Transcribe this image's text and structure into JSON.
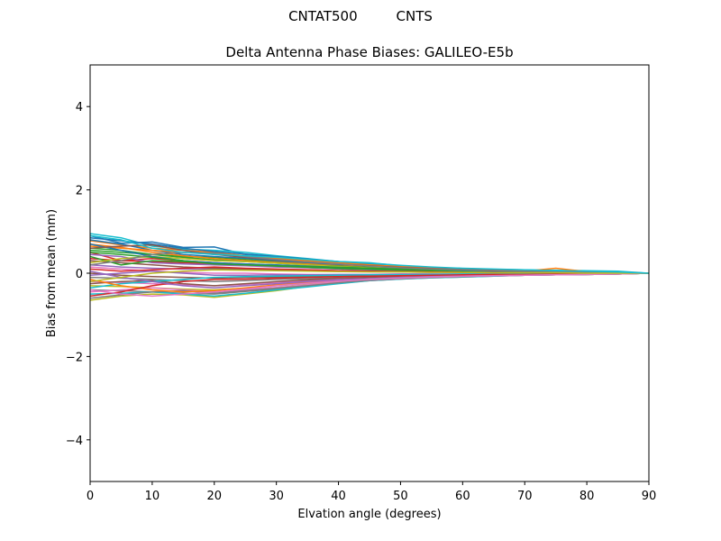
{
  "figure": {
    "suptitle": "CNTAT500         CNTS"
  },
  "chart_data": {
    "type": "line",
    "title": "Delta Antenna Phase Biases: GALILEO-E5b",
    "xlabel": "Elvation angle (degrees)",
    "ylabel": "Bias from mean (mm)",
    "xlim": [
      0,
      90
    ],
    "ylim": [
      -5,
      5
    ],
    "xticks": [
      0,
      10,
      20,
      30,
      40,
      50,
      60,
      70,
      80,
      90
    ],
    "xtick_labels": [
      "0",
      "10",
      "20",
      "30",
      "40",
      "50",
      "60",
      "70",
      "80",
      "90"
    ],
    "yticks": [
      -4,
      -2,
      0,
      2,
      4
    ],
    "ytick_labels": [
      "−4",
      "−2",
      "0",
      "2",
      "4"
    ],
    "grid": false,
    "legend": "none",
    "x": [
      0,
      5,
      10,
      15,
      20,
      25,
      30,
      35,
      40,
      45,
      50,
      55,
      60,
      65,
      70,
      75,
      80,
      85,
      90
    ],
    "colors": [
      "#1f77b4",
      "#ff7f0e",
      "#2ca02c",
      "#d62728",
      "#9467bd",
      "#8c564b",
      "#e377c2",
      "#7f7f7f",
      "#bcbd22",
      "#17becf"
    ],
    "series": [
      {
        "values": [
          0.9,
          0.72,
          0.75,
          0.62,
          0.63,
          0.45,
          0.4,
          0.32,
          0.27,
          0.22,
          0.17,
          0.12,
          0.1,
          0.08,
          0.06,
          0.05,
          0.04,
          0.03,
          0.0
        ]
      },
      {
        "values": [
          0.78,
          0.68,
          0.6,
          0.55,
          0.5,
          0.42,
          0.36,
          0.3,
          0.25,
          0.2,
          0.15,
          0.12,
          0.09,
          0.07,
          0.05,
          0.04,
          0.03,
          0.02,
          0.0
        ]
      },
      {
        "values": [
          0.55,
          0.5,
          0.45,
          0.4,
          0.38,
          0.33,
          0.28,
          0.24,
          0.2,
          0.16,
          0.13,
          0.1,
          0.08,
          0.06,
          0.05,
          0.04,
          0.03,
          0.02,
          0.0
        ]
      },
      {
        "values": [
          0.35,
          0.3,
          0.28,
          0.25,
          0.22,
          0.2,
          0.18,
          0.15,
          0.12,
          0.1,
          0.08,
          0.06,
          0.05,
          0.04,
          0.03,
          0.02,
          0.02,
          0.01,
          0.0
        ]
      },
      {
        "values": [
          0.2,
          0.15,
          0.12,
          0.1,
          0.1,
          0.08,
          0.07,
          0.06,
          0.05,
          0.04,
          0.03,
          0.02,
          0.02,
          0.01,
          0.01,
          0.01,
          0.0,
          0.0,
          0.0
        ]
      },
      {
        "values": [
          0.0,
          -0.05,
          -0.08,
          -0.1,
          -0.12,
          -0.1,
          -0.09,
          -0.08,
          -0.07,
          -0.06,
          -0.05,
          -0.04,
          -0.03,
          -0.03,
          -0.02,
          -0.02,
          -0.01,
          -0.01,
          0.0
        ]
      },
      {
        "values": [
          -0.2,
          -0.22,
          -0.25,
          -0.28,
          -0.3,
          -0.27,
          -0.22,
          -0.18,
          -0.15,
          -0.12,
          -0.1,
          -0.08,
          -0.06,
          -0.05,
          -0.04,
          -0.03,
          -0.02,
          -0.01,
          0.0
        ]
      },
      {
        "values": [
          -0.4,
          -0.42,
          -0.45,
          -0.48,
          -0.5,
          -0.44,
          -0.38,
          -0.3,
          -0.24,
          -0.18,
          -0.14,
          -0.11,
          -0.09,
          -0.07,
          -0.05,
          -0.04,
          -0.03,
          -0.02,
          0.0
        ]
      },
      {
        "values": [
          -0.65,
          -0.55,
          -0.5,
          -0.52,
          -0.58,
          -0.5,
          -0.42,
          -0.32,
          -0.22,
          -0.16,
          -0.12,
          -0.1,
          -0.08,
          -0.06,
          -0.05,
          -0.04,
          -0.03,
          -0.02,
          0.0
        ]
      },
      {
        "values": [
          0.95,
          0.85,
          0.65,
          0.58,
          0.55,
          0.5,
          0.42,
          0.35,
          0.28,
          0.25,
          0.18,
          0.13,
          0.1,
          0.09,
          0.08,
          0.07,
          0.06,
          0.05,
          0.0
        ]
      },
      {
        "values": [
          0.8,
          0.7,
          0.55,
          0.45,
          0.4,
          0.36,
          0.3,
          0.25,
          0.2,
          0.16,
          0.12,
          0.1,
          0.08,
          0.06,
          0.05,
          0.04,
          0.03,
          0.02,
          0.0
        ]
      },
      {
        "values": [
          0.7,
          0.62,
          0.5,
          0.42,
          0.35,
          0.3,
          0.26,
          0.22,
          0.18,
          0.15,
          0.11,
          0.09,
          0.07,
          0.05,
          0.05,
          0.12,
          0.04,
          0.02,
          0.0
        ]
      },
      {
        "values": [
          0.6,
          0.55,
          0.45,
          0.38,
          0.32,
          0.28,
          0.24,
          0.2,
          0.17,
          0.14,
          0.11,
          0.08,
          0.06,
          0.05,
          0.04,
          0.03,
          0.02,
          0.01,
          0.0
        ]
      },
      {
        "values": [
          0.5,
          0.3,
          0.35,
          0.3,
          0.25,
          0.22,
          0.19,
          0.16,
          0.13,
          0.11,
          0.09,
          0.07,
          0.05,
          0.04,
          0.03,
          0.02,
          0.02,
          0.01,
          0.0
        ]
      },
      {
        "values": [
          0.45,
          0.4,
          0.25,
          0.22,
          0.2,
          0.18,
          0.15,
          0.13,
          0.1,
          0.08,
          0.07,
          0.05,
          0.04,
          0.03,
          0.02,
          0.02,
          0.01,
          0.01,
          0.0
        ]
      },
      {
        "values": [
          0.3,
          0.25,
          0.2,
          0.15,
          0.12,
          0.1,
          0.09,
          0.08,
          0.06,
          0.05,
          0.04,
          0.03,
          0.02,
          0.02,
          0.01,
          0.01,
          0.01,
          0.0,
          0.0
        ]
      },
      {
        "values": [
          0.15,
          0.1,
          0.05,
          0.02,
          0.0,
          0.0,
          -0.02,
          -0.03,
          -0.04,
          -0.04,
          -0.04,
          -0.03,
          -0.03,
          -0.02,
          -0.02,
          -0.01,
          -0.01,
          0.0,
          0.0
        ]
      },
      {
        "values": [
          -0.1,
          -0.12,
          -0.15,
          -0.18,
          -0.2,
          -0.18,
          -0.15,
          -0.13,
          -0.11,
          -0.09,
          -0.07,
          -0.06,
          -0.05,
          -0.04,
          -0.03,
          -0.02,
          -0.02,
          -0.01,
          0.0
        ]
      },
      {
        "values": [
          -0.3,
          -0.32,
          -0.35,
          -0.38,
          -0.4,
          -0.36,
          -0.3,
          -0.25,
          -0.2,
          -0.16,
          -0.12,
          -0.1,
          -0.08,
          -0.06,
          -0.05,
          -0.04,
          -0.03,
          -0.02,
          0.0
        ]
      },
      {
        "values": [
          -0.5,
          -0.48,
          -0.45,
          -0.5,
          -0.55,
          -0.48,
          -0.4,
          -0.33,
          -0.25,
          -0.18,
          -0.14,
          -0.11,
          -0.09,
          -0.07,
          -0.05,
          -0.04,
          -0.03,
          -0.02,
          0.0
        ]
      },
      {
        "values": [
          0.85,
          0.78,
          0.7,
          0.6,
          0.52,
          0.46,
          0.4,
          0.34,
          0.28,
          0.22,
          0.18,
          0.14,
          0.11,
          0.09,
          0.07,
          0.05,
          0.04,
          0.02,
          0.0
        ]
      },
      {
        "values": [
          0.65,
          0.6,
          0.55,
          0.5,
          0.46,
          0.4,
          0.35,
          0.3,
          0.25,
          0.2,
          0.16,
          0.13,
          0.1,
          0.08,
          0.06,
          0.05,
          0.04,
          0.02,
          0.0
        ]
      },
      {
        "values": [
          0.4,
          0.2,
          0.3,
          0.28,
          0.25,
          0.2,
          0.17,
          0.14,
          0.11,
          0.09,
          0.07,
          0.06,
          0.05,
          0.04,
          0.03,
          0.02,
          0.02,
          0.01,
          0.0
        ]
      },
      {
        "values": [
          0.1,
          0.05,
          0.08,
          0.12,
          0.15,
          0.12,
          0.1,
          0.08,
          0.06,
          0.05,
          0.04,
          0.03,
          0.02,
          0.02,
          0.01,
          0.01,
          0.0,
          0.0,
          0.0
        ]
      },
      {
        "values": [
          -0.05,
          0.0,
          0.05,
          0.0,
          -0.05,
          -0.05,
          -0.04,
          -0.04,
          -0.03,
          -0.03,
          -0.02,
          -0.02,
          -0.02,
          -0.01,
          -0.01,
          -0.01,
          0.0,
          0.0,
          0.0
        ]
      },
      {
        "values": [
          -0.25,
          -0.2,
          -0.18,
          -0.25,
          -0.3,
          -0.25,
          -0.2,
          -0.16,
          -0.12,
          -0.1,
          -0.08,
          -0.06,
          -0.05,
          -0.04,
          -0.03,
          -0.02,
          -0.02,
          -0.01,
          0.0
        ]
      },
      {
        "values": [
          -0.45,
          -0.4,
          -0.35,
          -0.4,
          -0.45,
          -0.4,
          -0.34,
          -0.28,
          -0.22,
          -0.17,
          -0.13,
          -0.1,
          -0.08,
          -0.06,
          -0.05,
          -0.04,
          -0.03,
          -0.02,
          0.0
        ]
      },
      {
        "values": [
          -0.6,
          -0.52,
          -0.45,
          -0.42,
          -0.48,
          -0.42,
          -0.36,
          -0.3,
          -0.23,
          -0.17,
          -0.13,
          -0.1,
          -0.08,
          -0.06,
          -0.05,
          -0.04,
          -0.03,
          -0.02,
          0.0
        ]
      },
      {
        "values": [
          0.25,
          0.35,
          0.4,
          0.35,
          0.3,
          0.28,
          0.24,
          0.2,
          0.16,
          0.13,
          0.1,
          0.08,
          0.06,
          0.05,
          0.04,
          0.03,
          0.02,
          0.01,
          0.0
        ]
      },
      {
        "values": [
          -0.35,
          -0.25,
          -0.2,
          -0.15,
          -0.1,
          -0.08,
          -0.07,
          -0.06,
          -0.05,
          -0.04,
          -0.04,
          -0.03,
          -0.02,
          -0.02,
          -0.01,
          -0.01,
          -0.01,
          0.0,
          0.0
        ]
      },
      {
        "values": [
          0.7,
          0.55,
          0.4,
          0.3,
          0.25,
          0.22,
          0.2,
          0.17,
          0.14,
          0.12,
          0.1,
          0.08,
          0.06,
          0.05,
          0.04,
          0.03,
          0.02,
          0.01,
          0.0
        ]
      },
      {
        "values": [
          -0.15,
          -0.3,
          -0.4,
          -0.45,
          -0.42,
          -0.35,
          -0.28,
          -0.22,
          -0.17,
          -0.13,
          -0.1,
          -0.08,
          -0.06,
          -0.05,
          -0.04,
          -0.03,
          -0.02,
          -0.01,
          0.0
        ]
      },
      {
        "values": [
          0.5,
          0.45,
          0.38,
          0.3,
          0.22,
          0.2,
          0.18,
          0.16,
          0.14,
          0.12,
          0.1,
          0.08,
          0.07,
          0.06,
          0.05,
          0.04,
          0.03,
          0.02,
          0.0
        ]
      },
      {
        "values": [
          -0.55,
          -0.45,
          -0.3,
          -0.2,
          -0.15,
          -0.14,
          -0.12,
          -0.1,
          -0.08,
          -0.07,
          -0.06,
          -0.05,
          -0.04,
          -0.03,
          -0.03,
          -0.02,
          -0.02,
          -0.01,
          0.0
        ]
      },
      {
        "values": [
          0.05,
          -0.1,
          -0.2,
          -0.3,
          -0.35,
          -0.3,
          -0.25,
          -0.2,
          -0.16,
          -0.13,
          -0.1,
          -0.08,
          -0.07,
          -0.06,
          -0.05,
          -0.04,
          -0.03,
          -0.02,
          0.0
        ]
      },
      {
        "values": [
          0.6,
          0.65,
          0.68,
          0.55,
          0.45,
          0.38,
          0.32,
          0.27,
          0.22,
          0.18,
          0.14,
          0.11,
          0.09,
          0.07,
          0.05,
          0.04,
          0.03,
          0.02,
          0.0
        ]
      },
      {
        "values": [
          -0.4,
          -0.5,
          -0.55,
          -0.5,
          -0.45,
          -0.38,
          -0.3,
          -0.24,
          -0.19,
          -0.15,
          -0.12,
          -0.09,
          -0.07,
          -0.06,
          -0.05,
          -0.04,
          -0.03,
          -0.02,
          0.0
        ]
      },
      {
        "values": [
          0.2,
          0.3,
          0.45,
          0.5,
          0.48,
          0.4,
          0.33,
          0.27,
          0.22,
          0.17,
          0.13,
          0.1,
          0.08,
          0.06,
          0.05,
          0.04,
          0.03,
          0.02,
          0.0
        ]
      },
      {
        "values": [
          -0.2,
          -0.1,
          0.0,
          0.05,
          0.08,
          0.07,
          0.06,
          0.05,
          0.04,
          0.03,
          0.03,
          0.02,
          0.02,
          0.01,
          0.01,
          0.01,
          0.0,
          0.0,
          0.0
        ]
      },
      {
        "values": [
          0.9,
          0.8,
          0.6,
          0.5,
          0.45,
          0.42,
          0.38,
          0.33,
          0.28,
          0.24,
          0.19,
          0.15,
          0.12,
          0.1,
          0.08,
          0.06,
          0.05,
          0.03,
          0.0
        ]
      }
    ]
  }
}
